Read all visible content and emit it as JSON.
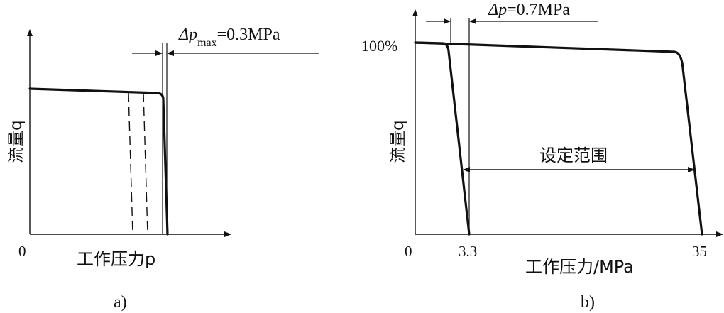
{
  "panel_a": {
    "y_label": "流量q",
    "x_label": "工作压力p",
    "origin": "0",
    "delta_label": "Δp",
    "delta_sub": "max",
    "delta_value": "=0.3MPa",
    "caption": "a)"
  },
  "panel_b": {
    "y_label": "流量q",
    "x_label": "工作压力/MPa",
    "origin": "0",
    "pct_label": "100%",
    "tick_low": "3.3",
    "tick_high": "35",
    "delta_label": "Δp",
    "delta_value": "=0.7MPa",
    "range_label": "设定范围",
    "caption": "b)"
  }
}
